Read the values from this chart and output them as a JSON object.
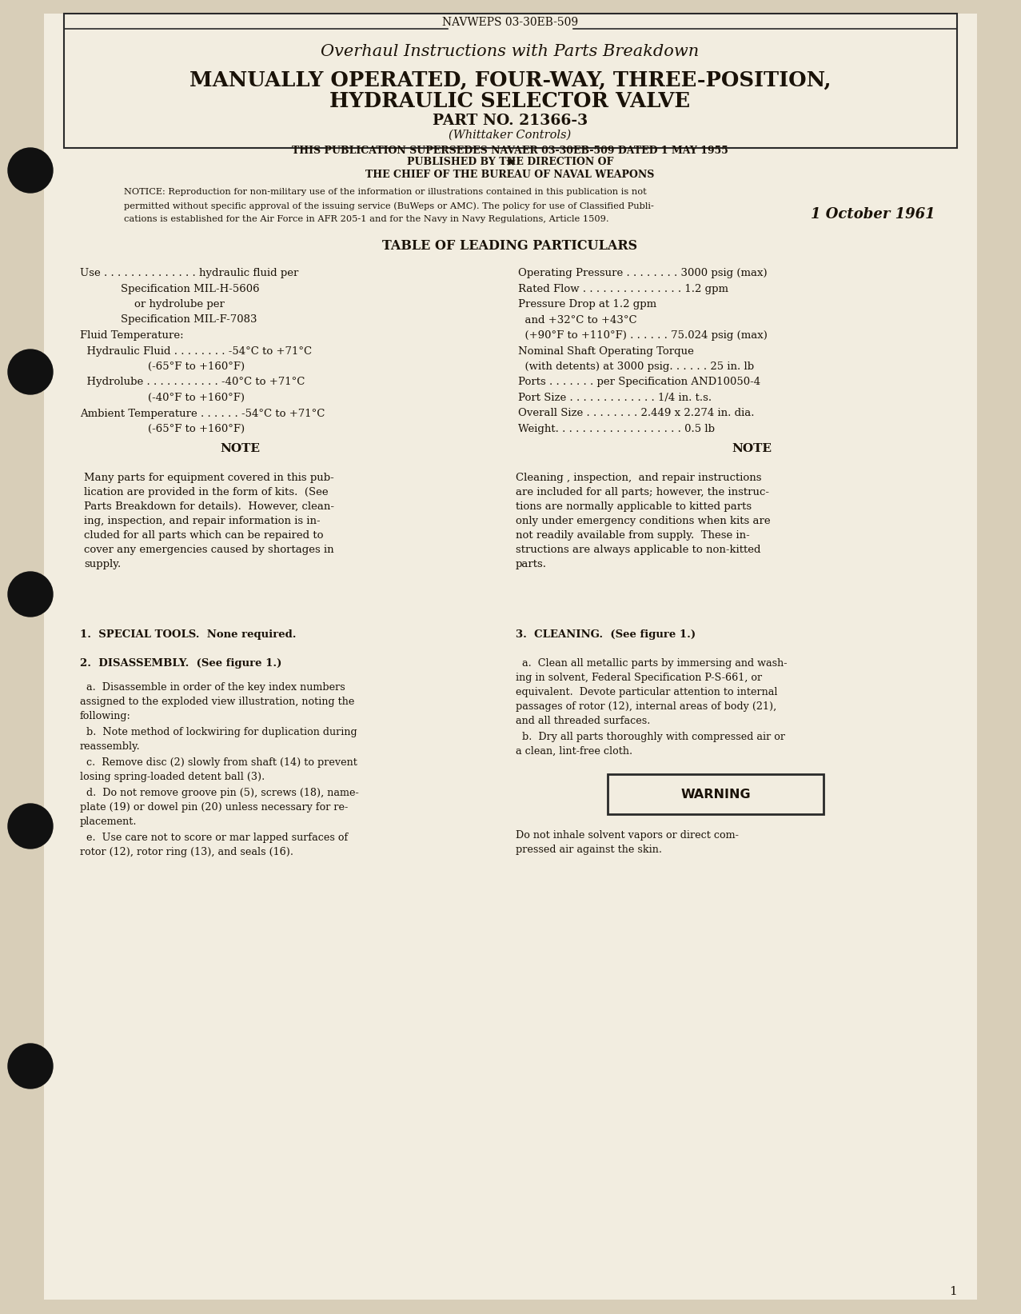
{
  "bg_color": "#f2ede0",
  "text_color": "#1a1208",
  "page_bg": "#d8ceb8",
  "header_label": "NAVWEPS 03-30EB-509",
  "title_subtitle": "Overhaul Instructions with Parts Breakdown",
  "title_main_line1": "MANUALLY OPERATED, FOUR-WAY, THREE-POSITION,",
  "title_main_line2": "HYDRAULIC SELECTOR VALVE",
  "part_no": "PART NO. 21366-3",
  "manufacturer": "(Whittaker Controls)",
  "supersedes": "THIS PUBLICATION SUPERSEDES NAVAER 03-30EB-509 DATED 1 MAY 1955",
  "published_by": "PUBLISHED BY THE DIRECTION OF",
  "chief": "THE CHIEF OF THE BUREAU OF NAVAL WEAPONS",
  "notice_text": "NOTICE: Reproduction for non-military use of the information or illustrations contained in this publication is not\npermitted without specific approval of the issuing service (BuWeps or AMC). The policy for use of Classified Publi-\ncations is established for the Air Force in AFR 205-1 and for the Navy in Navy Regulations, Article 1509.",
  "date": "1 October 1961",
  "table_title": "TABLE OF LEADING PARTICULARS",
  "particulars_left": [
    [
      "Use . . . . . . . . . . . . . . hydraulic fluid per",
      0.0
    ],
    [
      "            Specification MIL-H-5606",
      0.0
    ],
    [
      "                or hydrolube per",
      0.0
    ],
    [
      "            Specification MIL-F-7083",
      0.0
    ],
    [
      "Fluid Temperature:",
      0.0
    ],
    [
      "  Hydraulic Fluid . . . . . . . . -54°C to +71°C",
      0.0
    ],
    [
      "                    (-65°F to +160°F)",
      0.0
    ],
    [
      "  Hydrolube . . . . . . . . . . . -40°C to +71°C",
      0.0
    ],
    [
      "                    (-40°F to +160°F)",
      0.0
    ],
    [
      "Ambient Temperature . . . . . . -54°C to +71°C",
      0.0
    ],
    [
      "                    (-65°F to +160°F)",
      0.0
    ]
  ],
  "particulars_right": [
    "Operating Pressure . . . . . . . . 3000 psig (max)",
    "Rated Flow . . . . . . . . . . . . . . . 1.2 gpm",
    "Pressure Drop at 1.2 gpm",
    "  and +32°C to +43°C",
    "  (+90°F to +110°F) . . . . . . 75.024 psig (max)",
    "Nominal Shaft Operating Torque",
    "  (with detents) at 3000 psig. . . . . . 25 in. lb",
    "Ports . . . . . . . per Specification AND10050-4",
    "Port Size . . . . . . . . . . . . . 1/4 in. t.s.",
    "Overall Size . . . . . . . . 2.449 x 2.274 in. dia.",
    "Weight. . . . . . . . . . . . . . . . . . . 0.5 lb"
  ],
  "note_left_title": "NOTE",
  "note_left_text": "Many parts for equipment covered in this pub-\nlication are provided in the form of kits.  (See\nParts Breakdown for details).  However, clean-\ning, inspection, and repair information is in-\ncluded for all parts which can be repaired to\ncover any emergencies caused by shortages in\nsupply.",
  "note_right_title": "NOTE",
  "note_right_text": "Cleaning , inspection,  and repair instructions\nare included for all parts; however, the instruc-\ntions are normally applicable to kitted parts\nonly under emergency conditions when kits are\nnot readily available from supply.  These in-\nstructions are always applicable to non-kitted\nparts.",
  "section1": "1.  SPECIAL TOOLS.  None required.",
  "section2_head": "2.  DISASSEMBLY.  (See figure 1.)",
  "section2a": "  a.  Disassemble in order of the key index numbers\nassigned to the exploded view illustration, noting the\nfollowing:",
  "section2b": "  b.  Note method of lockwiring for duplication during\nreassembly.",
  "section2c": "  c.  Remove disc (2) slowly from shaft (14) to prevent\nlosing spring-loaded detent ball (3).",
  "section2d": "  d.  Do not remove groove pin (5), screws (18), name-\nplate (19) or dowel pin (20) unless necessary for re-\nplacement.",
  "section2e": "  e.  Use care not to score or mar lapped surfaces of\nrotor (12), rotor ring (13), and seals (16).",
  "section3_head": "3.  CLEANING.  (See figure 1.)",
  "section3a": "  a.  Clean all metallic parts by immersing and wash-\ning in solvent, Federal Specification P-S-661, or\nequivalent.  Devote particular attention to internal\npassages of rotor (12), internal areas of body (21),\nand all threaded surfaces.",
  "section3b": "  b.  Dry all parts thoroughly with compressed air or\na clean, lint-free cloth.",
  "warning_text": "WARNING",
  "warning_body": "Do not inhale solvent vapors or direct com-\npressed air against the skin.",
  "page_number": "1"
}
